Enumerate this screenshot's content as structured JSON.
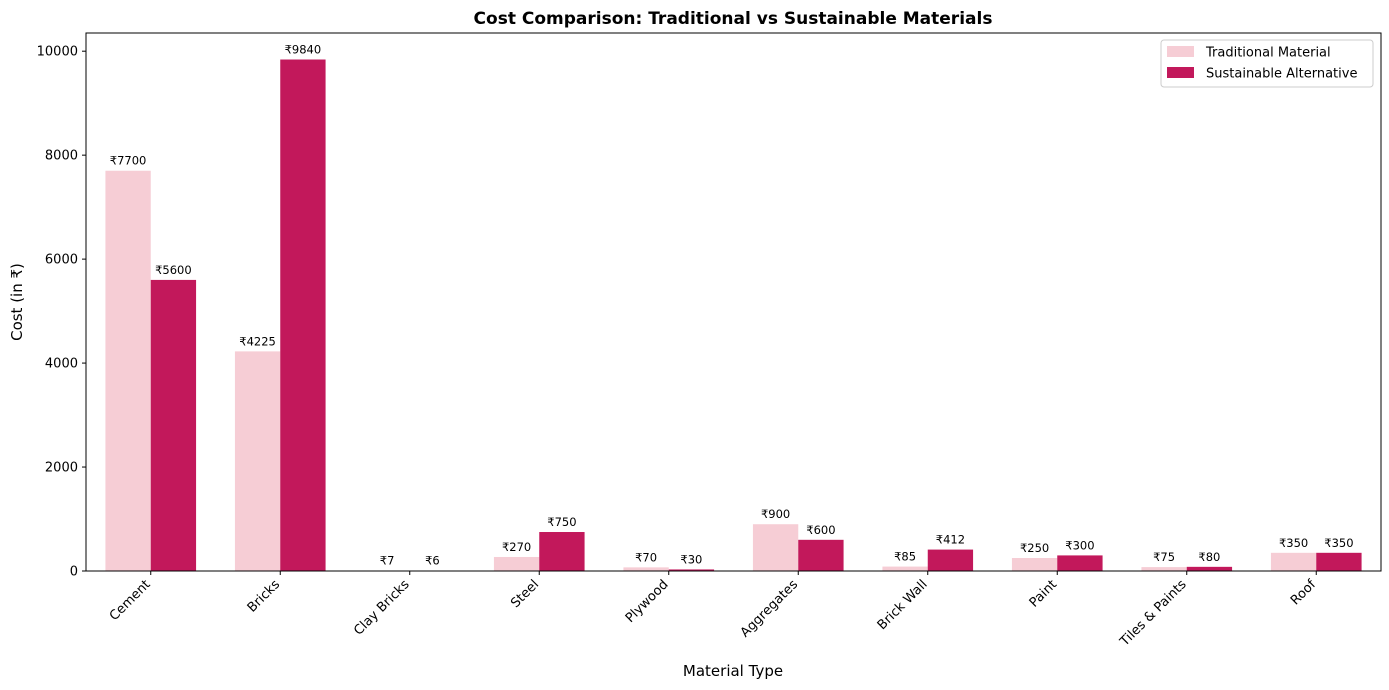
{
  "chart_data": {
    "type": "bar",
    "title": "Cost Comparison: Traditional vs Sustainable Materials",
    "xlabel": "Material Type",
    "ylabel": "Cost (in ₹)",
    "ylim": [
      0,
      10350
    ],
    "yticks": [
      0,
      2000,
      4000,
      6000,
      8000,
      10000
    ],
    "categories": [
      "Cement",
      "Bricks",
      "Clay Bricks",
      "Steel",
      "Plywood",
      "Aggregates",
      "Brick Wall",
      "Paint",
      "Tiles & Paints",
      "Roof"
    ],
    "series": [
      {
        "name": "Traditional Material",
        "color": "#f6cdd5",
        "values": [
          7700,
          4225,
          7,
          270,
          70,
          900,
          85,
          250,
          75,
          350
        ],
        "labels": [
          "₹7700",
          "₹4225",
          "₹7",
          "₹270",
          "₹70",
          "₹900",
          "₹85",
          "₹250",
          "₹75",
          "₹350"
        ]
      },
      {
        "name": "Sustainable Alternative",
        "color": "#c2185b",
        "values": [
          5600,
          9840,
          6,
          750,
          30,
          600,
          412,
          300,
          80,
          350
        ],
        "labels": [
          "₹5600",
          "₹9840",
          "₹6",
          "₹750",
          "₹30",
          "₹600",
          "₹412",
          "₹300",
          "₹80",
          "₹350"
        ]
      }
    ],
    "grid": false,
    "legend_position": "top-right"
  }
}
